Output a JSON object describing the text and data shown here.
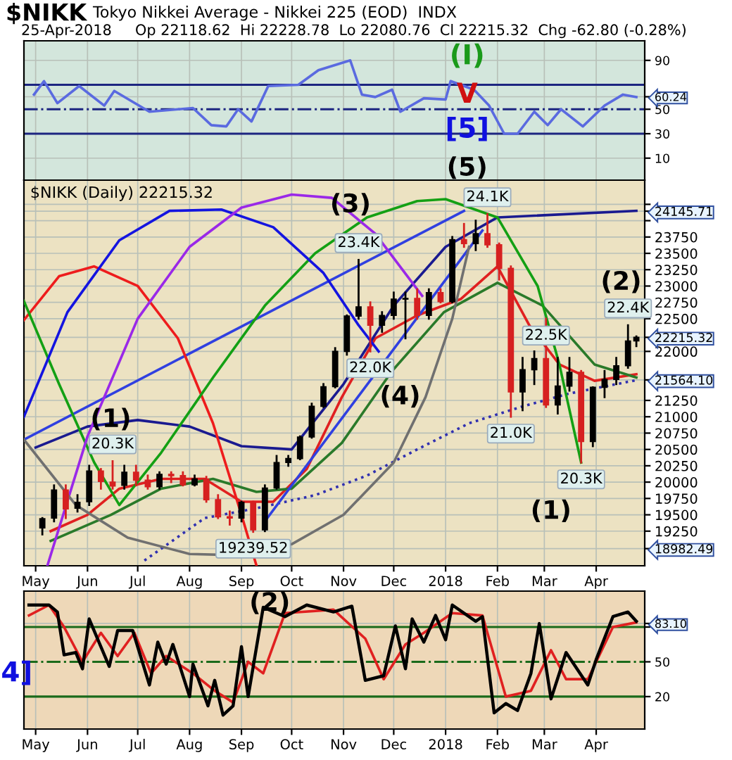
{
  "chart_data": [
    {
      "type": "line",
      "title": "$NIKK",
      "subtitle": "Tokyo Nikkei Average - Nikkei 225 (EOD)  INDX",
      "annotations": [
        "25-Apr-2018     Op 22118.62  Hi 22228.78  Lo 22080.76  Cl 22215.32  Chg -62.80 (-0.28%)",
        "(I)",
        "V",
        "[5]"
      ],
      "xlim": [
        "2017-04-24",
        "2018-04-30"
      ],
      "ylim": [
        -8,
        106
      ],
      "yticks": [
        10,
        30,
        50,
        {
          "value": 60.24,
          "label": "60.24"
        },
        90
      ],
      "xticks": [
        {
          "value": "2017-05-01",
          "label": null
        },
        {
          "value": "2017-06-01",
          "label": null
        },
        {
          "value": "2017-07-01",
          "label": null
        },
        {
          "value": "2017-08-01",
          "label": null
        },
        {
          "value": "2017-09-01",
          "label": null
        },
        {
          "value": "2017-10-01",
          "label": null
        },
        {
          "value": "2017-11-01",
          "label": null
        },
        {
          "value": "2017-12-01",
          "label": null
        },
        {
          "value": "2018-01-01",
          "label": null
        },
        {
          "value": "2018-02-01",
          "label": null
        },
        {
          "value": "2018-03-01",
          "label": null
        },
        {
          "value": "2018-04-01",
          "label": null
        }
      ],
      "tick_labels": "y",
      "grid": true,
      "legend": false,
      "ref_lines": [
        {
          "axis": "y",
          "value": 70,
          "color": "#1c2580",
          "line_style": "solid"
        },
        {
          "axis": "y",
          "value": 50,
          "color": "#1c2580",
          "line_style": "dashdot"
        },
        {
          "axis": "y",
          "value": 30,
          "color": "#1c2580",
          "line_style": "solid"
        }
      ],
      "x": [
        "2017-04-30",
        "2017-05-06",
        "2017-05-14",
        "2017-05-27",
        "2017-06-11",
        "2017-06-17",
        "2017-07-08",
        "2017-08-03",
        "2017-08-14",
        "2017-08-23",
        "2017-08-30",
        "2017-09-07",
        "2017-09-17",
        "2017-10-05",
        "2017-10-17",
        "2017-11-05",
        "2017-11-12",
        "2017-11-20",
        "2017-11-30",
        "2017-12-05",
        "2017-12-19",
        "2018-01-01",
        "2018-01-04",
        "2018-01-18",
        "2018-01-27",
        "2018-02-05",
        "2018-02-13",
        "2018-02-23",
        "2018-03-03",
        "2018-03-11",
        "2018-03-24",
        "2018-04-06",
        "2018-04-17",
        "2018-04-25"
      ],
      "series": [
        {
          "color": "#5a6ae0",
          "values": [
            62,
            73,
            55,
            69,
            53,
            65,
            48,
            51,
            37,
            36,
            50,
            40,
            69,
            70,
            82,
            90,
            62,
            60,
            66,
            48,
            59,
            58,
            73,
            66,
            53,
            30,
            30,
            48,
            37,
            50,
            36,
            53,
            62,
            60
          ]
        }
      ]
    },
    {
      "type": "candlestick",
      "annotations": [
        "$NIKK (Daily) 22215.32",
        "(1)",
        "(3)",
        "(4)",
        "(5)",
        "(1)",
        "(2)",
        {
          "text": "20.3K",
          "x": "2017-06-16",
          "y": 20320
        },
        {
          "text": "19239.52",
          "x": "2017-09-08",
          "y": 19239.52
        },
        {
          "text": "23.4K",
          "x": "2017-11-10",
          "y": 23400
        },
        {
          "text": "22.0K",
          "x": "2017-11-17",
          "y": 22000
        },
        {
          "text": "24.1K",
          "x": "2018-01-26",
          "y": 24100
        },
        {
          "text": "22.5K",
          "x": "2018-03-02",
          "y": 22500
        },
        {
          "text": "21.0K",
          "x": "2018-02-09",
          "y": 21000
        },
        {
          "text": "20.3K",
          "x": "2018-03-23",
          "y": 20300
        },
        {
          "text": "22.4K",
          "x": "2018-04-20",
          "y": 22400
        }
      ],
      "xlim": [
        "2017-04-24",
        "2018-04-30"
      ],
      "ylim": [
        18720,
        24620
      ],
      "yticks": [
        {
          "value": 18982.49,
          "label": "18982.49"
        },
        19250,
        19500,
        19750,
        20000,
        20250,
        20500,
        20750,
        21000,
        21250,
        {
          "value": 21564.1,
          "label": "21564.10"
        },
        22000,
        {
          "value": 22215.32,
          "label": "22215.32"
        },
        22500,
        22750,
        23000,
        23250,
        23500,
        23750,
        {
          "value": 24000,
          "label": null
        },
        {
          "value": 24145.71,
          "label": "24145.71"
        },
        {
          "value": 24250,
          "label": null
        }
      ],
      "xticks": [
        {
          "value": "2017-05-01",
          "label": "May"
        },
        {
          "value": "2017-06-01",
          "label": "Jun"
        },
        {
          "value": "2017-07-01",
          "label": "Jul"
        },
        {
          "value": "2017-08-01",
          "label": "Aug"
        },
        {
          "value": "2017-09-01",
          "label": "Sep"
        },
        {
          "value": "2017-10-01",
          "label": "Oct"
        },
        {
          "value": "2017-11-01",
          "label": "Nov"
        },
        {
          "value": "2017-12-01",
          "label": "Dec"
        },
        {
          "value": "2018-01-01",
          "label": "2018"
        },
        {
          "value": "2018-02-01",
          "label": "Feb"
        },
        {
          "value": "2018-03-01",
          "label": "Mar"
        },
        {
          "value": "2018-04-01",
          "label": "Apr"
        }
      ],
      "grid": true,
      "legend": false,
      "x": [
        "2017-05-05",
        "2017-05-12",
        "2017-05-19",
        "2017-05-26",
        "2017-06-02",
        "2017-06-09",
        "2017-06-16",
        "2017-06-23",
        "2017-06-30",
        "2017-07-07",
        "2017-07-14",
        "2017-07-21",
        "2017-07-28",
        "2017-08-04",
        "2017-08-11",
        "2017-08-18",
        "2017-08-25",
        "2017-09-01",
        "2017-09-08",
        "2017-09-15",
        "2017-09-22",
        "2017-09-29",
        "2017-10-06",
        "2017-10-13",
        "2017-10-20",
        "2017-10-27",
        "2017-11-03",
        "2017-11-10",
        "2017-11-17",
        "2017-11-24",
        "2017-12-01",
        "2017-12-08",
        "2017-12-15",
        "2017-12-22",
        "2017-12-29",
        "2018-01-05",
        "2018-01-12",
        "2018-01-19",
        "2018-01-26",
        "2018-02-02",
        "2018-02-09",
        "2018-02-16",
        "2018-02-23",
        "2018-03-02",
        "2018-03-09",
        "2018-03-16",
        "2018-03-23",
        "2018-03-30",
        "2018-04-06",
        "2018-04-13",
        "2018-04-20",
        "2018-04-25"
      ],
      "ohlc": [
        [
          19300,
          19450,
          19200,
          19440
        ],
        [
          19450,
          19950,
          19400,
          19880
        ],
        [
          19880,
          19950,
          19450,
          19590
        ],
        [
          19600,
          19800,
          19550,
          19690
        ],
        [
          19700,
          20250,
          19650,
          20170
        ],
        [
          20170,
          20200,
          19900,
          20010
        ],
        [
          20000,
          20320,
          19900,
          19940
        ],
        [
          19950,
          20250,
          19900,
          20150
        ],
        [
          20150,
          20250,
          19950,
          20030
        ],
        [
          20030,
          20100,
          19900,
          19930
        ],
        [
          19930,
          20150,
          19900,
          20120
        ],
        [
          20120,
          20150,
          20000,
          20100
        ],
        [
          20100,
          20150,
          19950,
          19960
        ],
        [
          19960,
          20100,
          19950,
          20050
        ],
        [
          20050,
          20080,
          19700,
          19730
        ],
        [
          19730,
          19800,
          19450,
          19470
        ],
        [
          19470,
          19550,
          19350,
          19450
        ],
        [
          19450,
          19700,
          19400,
          19690
        ],
        [
          19690,
          19700,
          19239.52,
          19270
        ],
        [
          19270,
          19950,
          19250,
          19910
        ],
        [
          19910,
          20400,
          19900,
          20300
        ],
        [
          20300,
          20400,
          20250,
          20360
        ],
        [
          20360,
          20700,
          20350,
          20690
        ],
        [
          20690,
          21200,
          20680,
          21160
        ],
        [
          21160,
          21500,
          21150,
          21460
        ],
        [
          21460,
          22050,
          21450,
          22000
        ],
        [
          22000,
          22550,
          21950,
          22540
        ],
        [
          22540,
          23400,
          22500,
          22680
        ],
        [
          22680,
          22750,
          22000,
          22400
        ],
        [
          22400,
          22600,
          22300,
          22550
        ],
        [
          22550,
          22900,
          22500,
          22800
        ],
        [
          22800,
          22900,
          22200,
          22810
        ],
        [
          22810,
          22950,
          22500,
          22550
        ],
        [
          22550,
          22950,
          22500,
          22900
        ],
        [
          22900,
          22950,
          22750,
          22760
        ],
        [
          22760,
          23750,
          22750,
          23710
        ],
        [
          23710,
          23950,
          23600,
          23650
        ],
        [
          23650,
          24000,
          23550,
          23800
        ],
        [
          23800,
          24100,
          23600,
          23630
        ],
        [
          23630,
          23650,
          23100,
          23270
        ],
        [
          23270,
          23300,
          21000,
          21380
        ],
        [
          21380,
          21900,
          21100,
          21720
        ],
        [
          21720,
          22000,
          21500,
          21890
        ],
        [
          21890,
          22500,
          21150,
          21180
        ],
        [
          21180,
          21900,
          21050,
          21470
        ],
        [
          21470,
          21900,
          21400,
          21680
        ],
        [
          21680,
          21700,
          20300,
          20620
        ],
        [
          20620,
          21450,
          20550,
          21450
        ],
        [
          21450,
          21700,
          21300,
          21570
        ],
        [
          21570,
          21900,
          21500,
          21780
        ],
        [
          21780,
          22400,
          21750,
          22160
        ],
        [
          22160,
          22228.78,
          22080.76,
          22215.32
        ]
      ],
      "colors": [
        "#000000",
        "#000000",
        "#d62020",
        "#000000",
        "#000000",
        "#d62020",
        "#d62020",
        "#000000",
        "#d62020",
        "#d62020",
        "#000000",
        "#d62020",
        "#d62020",
        "#000000",
        "#d62020",
        "#d62020",
        "#d62020",
        "#000000",
        "#d62020",
        "#000000",
        "#000000",
        "#000000",
        "#000000",
        "#000000",
        "#000000",
        "#000000",
        "#000000",
        "#000000",
        "#d62020",
        "#000000",
        "#000000",
        "#000000",
        "#d62020",
        "#000000",
        "#d62020",
        "#000000",
        "#d62020",
        "#000000",
        "#d62020",
        "#d62020",
        "#d62020",
        "#000000",
        "#000000",
        "#d62020",
        "#000000",
        "#000000",
        "#d62020",
        "#000000",
        "#000000",
        "#000000",
        "#000000",
        "#000000"
      ],
      "series": [
        {
          "type": "line",
          "color": "#e02020",
          "line_style": "solid",
          "x": [
            "2017-05-10",
            "2017-06-01",
            "2017-06-20",
            "2017-07-15",
            "2017-08-10",
            "2017-09-01",
            "2017-09-20",
            "2017-10-10",
            "2017-10-31",
            "2017-11-20",
            "2017-12-15",
            "2018-01-10",
            "2018-02-01",
            "2018-02-20",
            "2018-03-10",
            "2018-03-31",
            "2018-04-25"
          ],
          "values": [
            19250,
            19500,
            19900,
            20050,
            20050,
            19700,
            19700,
            20200,
            21300,
            22200,
            22550,
            22800,
            23300,
            22400,
            21800,
            21550,
            21650
          ]
        },
        {
          "type": "line",
          "color": "#2a7a2a",
          "line_style": "solid",
          "x": [
            "2017-05-10",
            "2017-06-15",
            "2017-07-15",
            "2017-08-15",
            "2017-09-10",
            "2017-10-01",
            "2017-10-31",
            "2017-11-30",
            "2017-12-31",
            "2018-02-01",
            "2018-02-28",
            "2018-03-31",
            "2018-04-25"
          ],
          "values": [
            19100,
            19500,
            19900,
            20050,
            19850,
            19900,
            20600,
            21700,
            22600,
            23050,
            22700,
            21800,
            21600
          ]
        },
        {
          "type": "line",
          "color": "#1a1a90",
          "line_style": "solid",
          "x": [
            "2017-05-01",
            "2017-06-01",
            "2017-07-01",
            "2017-08-01",
            "2017-09-01",
            "2017-10-01",
            "2017-11-01",
            "2017-12-01",
            "2018-01-01",
            "2018-02-01",
            "2018-04-25"
          ],
          "values": [
            20530,
            20850,
            20950,
            20850,
            20550,
            20500,
            21500,
            22700,
            23600,
            24050,
            24150
          ]
        },
        {
          "type": "line",
          "color": "#3030b0",
          "line_style": "dotted",
          "x": [
            "2017-07-05",
            "2017-08-10",
            "2017-09-10",
            "2017-10-15",
            "2017-11-15",
            "2017-12-15",
            "2018-01-15",
            "2018-02-15",
            "2018-03-15",
            "2018-04-25"
          ],
          "values": [
            18800,
            19450,
            19600,
            19800,
            20100,
            20500,
            20900,
            21150,
            21350,
            21560
          ]
        },
        {
          "type": "line",
          "color": "#3040e0",
          "line_style": "solid",
          "x": [
            "2017-04-24",
            "2018-01-12"
          ],
          "values": [
            20650,
            24150
          ]
        },
        {
          "type": "line",
          "color": "#3040e0",
          "line_style": "solid",
          "x": [
            "2017-09-15",
            "2018-01-23"
          ],
          "values": [
            19400,
            23850
          ]
        },
        {
          "type": "line",
          "color": "#ee1c1c",
          "line_style": "solid",
          "x": [
            "2017-04-24",
            "2017-05-15",
            "2017-06-05",
            "2017-07-01",
            "2017-07-25",
            "2017-08-15",
            "2017-09-01",
            "2017-09-10"
          ],
          "values": [
            22480,
            23150,
            23300,
            23000,
            22200,
            20900,
            19500,
            18720
          ]
        },
        {
          "type": "line",
          "color": "#14a014",
          "line_style": "solid",
          "x": [
            "2017-04-24",
            "2017-05-15",
            "2017-06-05",
            "2017-06-20",
            "2017-07-15",
            "2017-08-15",
            "2017-09-15",
            "2017-10-15",
            "2017-11-15",
            "2017-12-15",
            "2018-01-01",
            "2018-02-01",
            "2018-02-25",
            "2018-03-10",
            "2018-03-23"
          ],
          "values": [
            22770,
            21500,
            20300,
            19650,
            20450,
            21600,
            22700,
            23500,
            24050,
            24300,
            24330,
            24050,
            23000,
            21800,
            20300
          ]
        },
        {
          "type": "line",
          "color": "#1414e0",
          "line_style": "solid",
          "x": [
            "2017-04-24",
            "2017-05-20",
            "2017-06-20",
            "2017-07-20",
            "2017-08-20",
            "2017-09-20",
            "2017-10-20",
            "2017-11-10",
            "2017-11-22"
          ],
          "values": [
            21000,
            22600,
            23700,
            24150,
            24170,
            23900,
            23200,
            22400,
            22000
          ]
        },
        {
          "type": "line",
          "color": "#9a28e8",
          "line_style": "solid",
          "x": [
            "2017-05-08",
            "2017-06-01",
            "2017-07-01",
            "2017-08-01",
            "2017-09-01",
            "2017-10-01",
            "2017-10-25",
            "2017-11-20",
            "2017-12-18"
          ],
          "values": [
            18720,
            20700,
            22500,
            23600,
            24200,
            24400,
            24350,
            23800,
            22850
          ]
        },
        {
          "type": "line",
          "color": "#707070",
          "line_style": "solid",
          "x": [
            "2017-04-24",
            "2017-05-25",
            "2017-06-25",
            "2017-08-01",
            "2017-09-01",
            "2017-10-01",
            "2017-11-01",
            "2017-12-01",
            "2017-12-20",
            "2018-01-05",
            "2018-01-15"
          ],
          "values": [
            20650,
            19650,
            19150,
            18900,
            18880,
            19050,
            19500,
            20300,
            21300,
            22500,
            23600
          ]
        }
      ]
    },
    {
      "type": "line",
      "annotations": [
        "(2)",
        "4]"
      ],
      "xlim": [
        "2017-04-24",
        "2018-04-30"
      ],
      "ylim": [
        -8,
        111
      ],
      "yticks": [
        20,
        50,
        {
          "value": 80,
          "label": null
        },
        {
          "value": 83.1,
          "label": "83.10"
        }
      ],
      "xticks": [
        {
          "value": "2017-05-01",
          "label": "May"
        },
        {
          "value": "2017-06-01",
          "label": "Jun"
        },
        {
          "value": "2017-07-01",
          "label": "Jul"
        },
        {
          "value": "2017-08-01",
          "label": "Aug"
        },
        {
          "value": "2017-09-01",
          "label": "Sep"
        },
        {
          "value": "2017-10-01",
          "label": "Oct"
        },
        {
          "value": "2017-11-01",
          "label": "Nov"
        },
        {
          "value": "2017-12-01",
          "label": "Dec"
        },
        {
          "value": "2018-01-01",
          "label": "2018"
        },
        {
          "value": "2018-02-01",
          "label": "Feb"
        },
        {
          "value": "2018-03-01",
          "label": "Mar"
        },
        {
          "value": "2018-04-01",
          "label": "Apr"
        }
      ],
      "grid": true,
      "legend": false,
      "ref_lines": [
        {
          "axis": "y",
          "value": 80,
          "color": "#1a6a1a",
          "line_style": "solid"
        },
        {
          "axis": "y",
          "value": 50,
          "color": "#1a6a1a",
          "line_style": "dashdot"
        },
        {
          "axis": "y",
          "value": 20,
          "color": "#1a6a1a",
          "line_style": "solid"
        }
      ],
      "series": [
        {
          "type": "line",
          "color": "#e02020",
          "x": [
            "2017-04-27",
            "2017-05-09",
            "2017-05-18",
            "2017-05-29",
            "2017-06-09",
            "2017-06-19",
            "2017-06-29",
            "2017-07-09",
            "2017-07-18",
            "2017-08-03",
            "2017-08-16",
            "2017-08-27",
            "2017-09-05",
            "2017-09-14",
            "2017-09-27",
            "2017-10-26",
            "2017-11-14",
            "2017-11-25",
            "2017-12-08",
            "2017-12-19",
            "2018-01-05",
            "2018-01-23",
            "2018-02-06",
            "2018-02-21",
            "2018-03-05",
            "2018-03-14",
            "2018-03-27",
            "2018-04-11",
            "2018-04-25"
          ],
          "values": [
            90,
            99,
            80,
            50,
            75,
            55,
            75,
            40,
            55,
            40,
            25,
            15,
            50,
            40,
            92,
            95,
            70,
            35,
            65,
            75,
            92,
            90,
            20,
            25,
            60,
            35,
            35,
            80,
            84
          ]
        },
        {
          "type": "line",
          "color": "#000000",
          "x": [
            "2017-04-27",
            "2017-05-09",
            "2017-05-14",
            "2017-05-18",
            "2017-05-25",
            "2017-05-29",
            "2017-06-02",
            "2017-06-09",
            "2017-06-14",
            "2017-06-19",
            "2017-06-28",
            "2017-07-08",
            "2017-07-13",
            "2017-07-18",
            "2017-07-22",
            "2017-08-01",
            "2017-08-03",
            "2017-08-12",
            "2017-08-16",
            "2017-08-21",
            "2017-08-27",
            "2017-09-01",
            "2017-09-05",
            "2017-09-14",
            "2017-09-27",
            "2017-10-10",
            "2017-10-26",
            "2017-11-06",
            "2017-11-14",
            "2017-11-25",
            "2017-12-02",
            "2017-12-08",
            "2017-12-12",
            "2017-12-19",
            "2017-12-26",
            "2018-01-01",
            "2018-01-05",
            "2018-01-19",
            "2018-01-23",
            "2018-01-30",
            "2018-02-06",
            "2018-02-13",
            "2018-02-21",
            "2018-02-26",
            "2018-03-05",
            "2018-03-14",
            "2018-03-27",
            "2018-04-01",
            "2018-04-11",
            "2018-04-20",
            "2018-04-25"
          ],
          "values": [
            99,
            99,
            93,
            56,
            58,
            44,
            87,
            63,
            46,
            77,
            77,
            30,
            67,
            48,
            65,
            20,
            48,
            12,
            34,
            4,
            12,
            63,
            20,
            97,
            89,
            99,
            93,
            98,
            34,
            38,
            81,
            44,
            87,
            67,
            90,
            69,
            99,
            85,
            89,
            6,
            14,
            8,
            40,
            83,
            18,
            58,
            30,
            52,
            89,
            93,
            85
          ]
        }
      ]
    }
  ]
}
